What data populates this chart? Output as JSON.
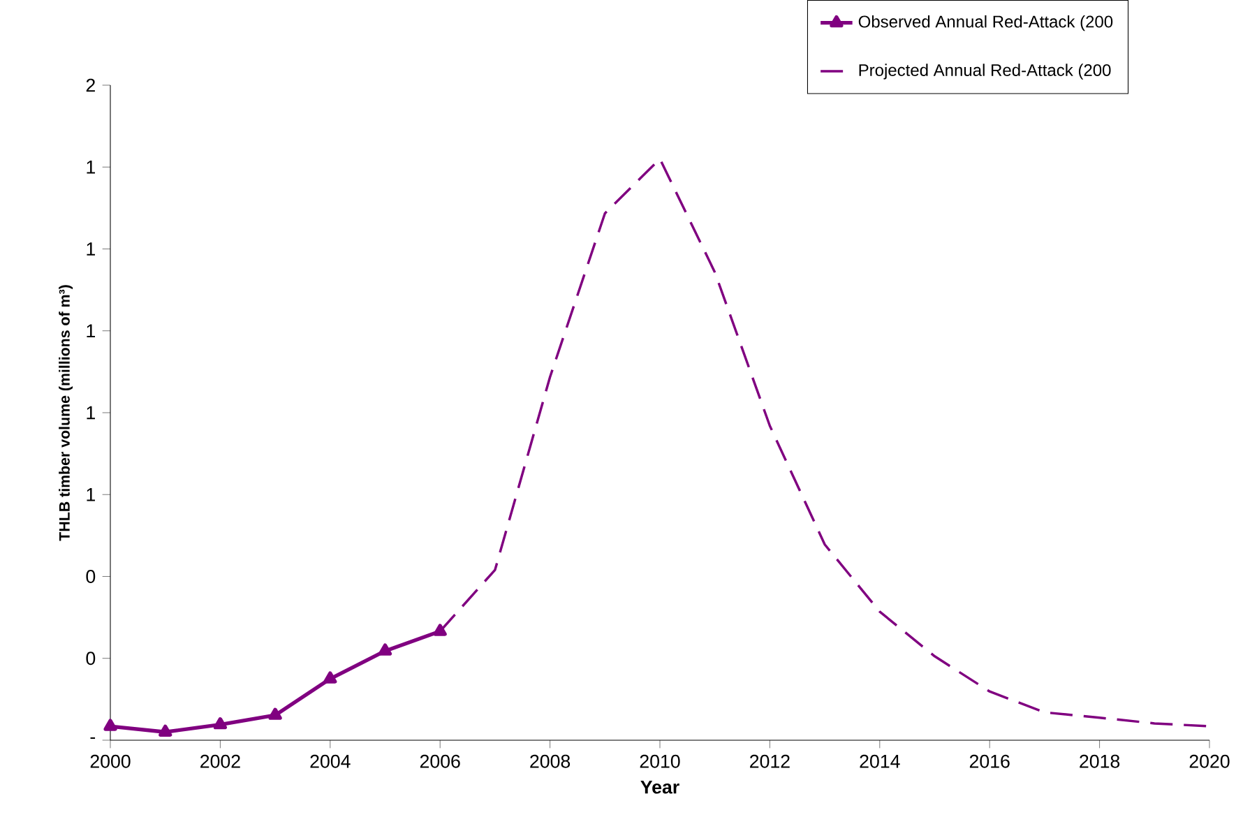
{
  "chart_data": {
    "type": "line",
    "xlabel": "Year",
    "ylabel": "THLB timber volume (millions of m³)",
    "xlim": [
      2000,
      2020
    ],
    "xticks": [
      2000,
      2002,
      2004,
      2006,
      2008,
      2010,
      2012,
      2014,
      2016,
      2018,
      2020
    ],
    "ylim": [
      0,
      1.6
    ],
    "yticks": [
      {
        "value": 0,
        "label": "-"
      },
      {
        "value": 0.2,
        "label": "0"
      },
      {
        "value": 0.4,
        "label": "0"
      },
      {
        "value": 0.6,
        "label": "1"
      },
      {
        "value": 0.8,
        "label": "1"
      },
      {
        "value": 1.0,
        "label": "1"
      },
      {
        "value": 1.2,
        "label": "1"
      },
      {
        "value": 1.4,
        "label": "1"
      },
      {
        "value": 1.6,
        "label": "2"
      }
    ],
    "legend": "top right",
    "grid": false,
    "series": [
      {
        "name": "Observed Annual Red-Attack (200",
        "color": "#800080",
        "marker": "triangle",
        "line_style": "solid",
        "x": [
          2000,
          2001,
          2002,
          2003,
          2004,
          2005,
          2006
        ],
        "values": [
          0.034,
          0.02,
          0.038,
          0.061,
          0.15,
          0.218,
          0.266
        ]
      },
      {
        "name": "Projected Annual Red-Attack (200",
        "color": "#800080",
        "marker": "none",
        "line_style": "dashed",
        "x": [
          2006,
          2007,
          2008,
          2009,
          2010,
          2011,
          2012,
          2013,
          2014,
          2015,
          2016,
          2017,
          2018,
          2019,
          2020
        ],
        "values": [
          0.266,
          0.416,
          0.887,
          1.287,
          1.42,
          1.143,
          0.768,
          0.478,
          0.314,
          0.205,
          0.119,
          0.068,
          0.055,
          0.041,
          0.034
        ]
      }
    ]
  }
}
